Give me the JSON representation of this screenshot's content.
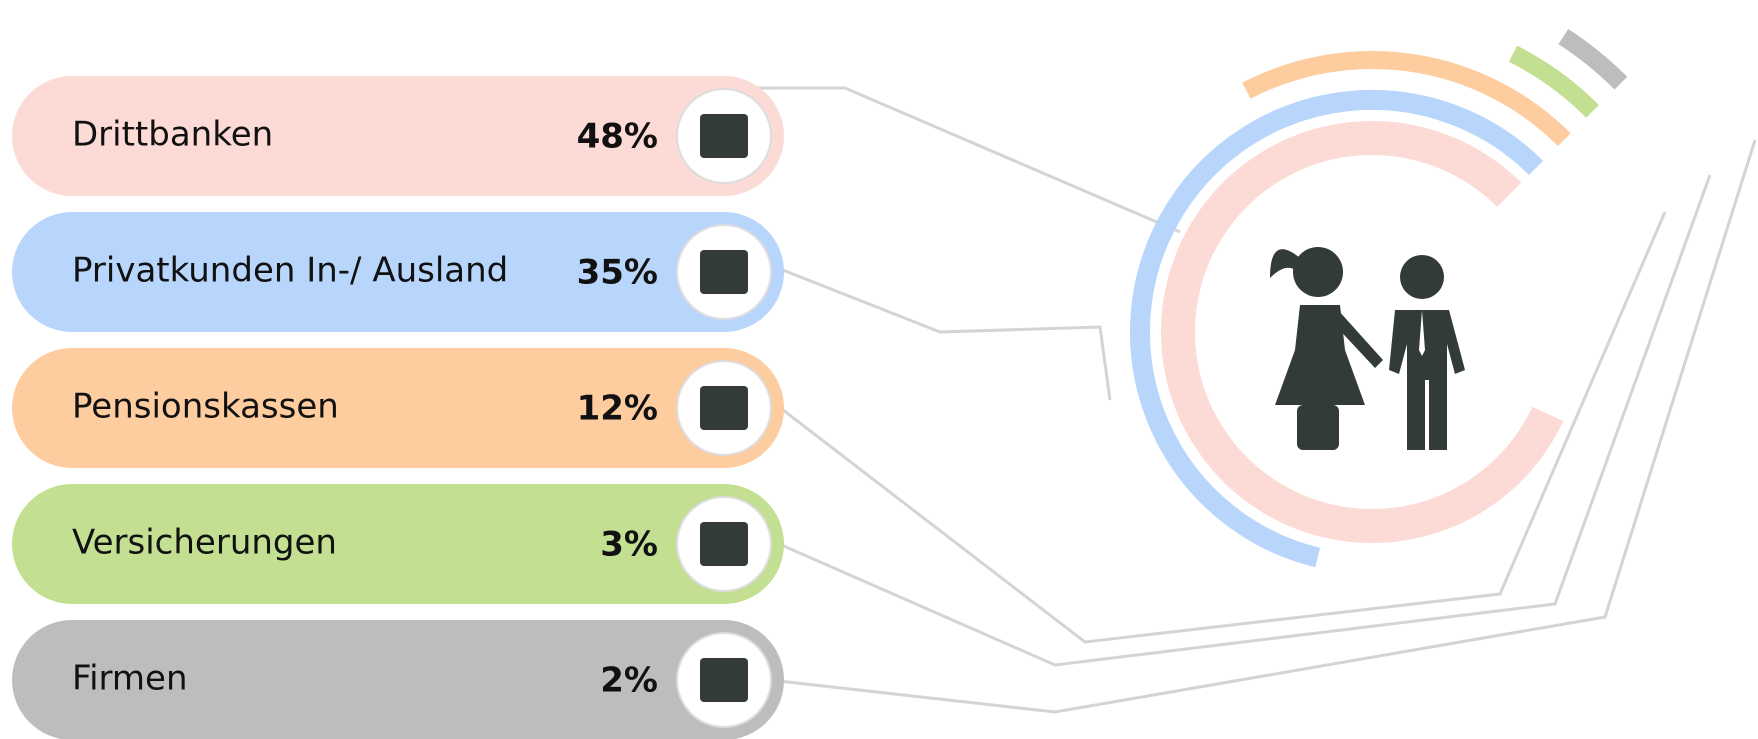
{
  "chart_data": {
    "type": "radial_bar",
    "categories": [
      "Drittbanken",
      "Privatkunden In-/ Ausland",
      "Pensionskassen",
      "Versicherungen",
      "Firmen"
    ],
    "values": [
      48,
      35,
      12,
      3,
      2
    ],
    "value_labels": [
      "48%",
      "35%",
      "12%",
      "3%",
      "2%"
    ],
    "colors": [
      "#fcdad6",
      "#b8d5fb",
      "#fdcc9f",
      "#c3df91",
      "#bdbdbd"
    ]
  }
}
